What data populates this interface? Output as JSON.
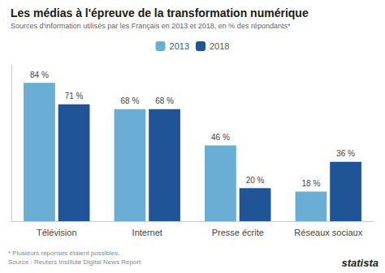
{
  "chart_data": {
    "type": "bar",
    "title": "Les médias à l'épreuve de la transformation numérique",
    "subtitle": "Sources d'information utilisés par les Français en 2013 et 2018, en % des répondants*",
    "categories": [
      "Télévision",
      "Internet",
      "Presse écrite",
      "Réseaux sociaux"
    ],
    "series": [
      {
        "name": "2013",
        "color": "#6aaed6",
        "values": [
          84,
          68,
          46,
          18
        ],
        "value_labels": [
          "84 %",
          "68 %",
          "46 %",
          "18 %"
        ]
      },
      {
        "name": "2018",
        "color": "#1f5496",
        "values": [
          71,
          68,
          20,
          36
        ],
        "value_labels": [
          "71 %",
          "68 %",
          "20 %",
          "36 %"
        ]
      }
    ],
    "ylim": [
      0,
      95
    ],
    "tick_labels": "x",
    "grid": false,
    "legend": "top",
    "data_labels": true,
    "annotations": [
      "* Plusieurs réponses étaient possibles.\nSource : Reuters Institute Digital News Report",
      "statista"
    ]
  }
}
